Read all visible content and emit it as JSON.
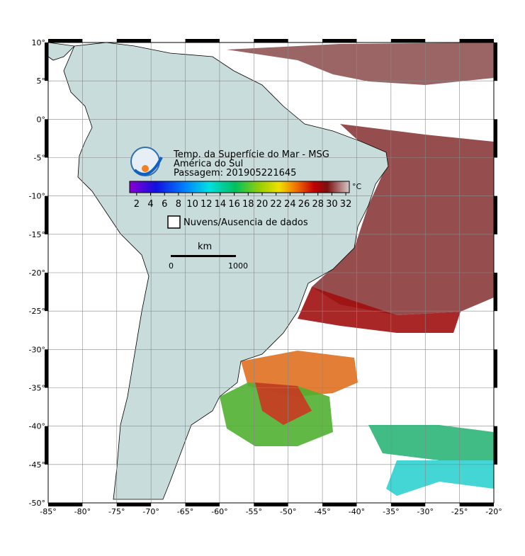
{
  "map": {
    "title_lines": [
      "Temp. da Superfície do Mar - MSG",
      "América do Sul",
      "Passagem: 201905221645"
    ],
    "lon_range": [
      -85,
      -20
    ],
    "lat_range": [
      -50,
      10
    ],
    "lon_ticks": [
      {
        "value": -85,
        "label": "-85°"
      },
      {
        "value": -80,
        "label": "-80°"
      },
      {
        "value": -75,
        "label": "-75°"
      },
      {
        "value": -70,
        "label": "-70°"
      },
      {
        "value": -65,
        "label": "-65°"
      },
      {
        "value": -60,
        "label": "-60°"
      },
      {
        "value": -55,
        "label": "-55°"
      },
      {
        "value": -50,
        "label": "-50°"
      },
      {
        "value": -45,
        "label": "-45°"
      },
      {
        "value": -40,
        "label": "-40°"
      },
      {
        "value": -35,
        "label": "-35°"
      },
      {
        "value": -30,
        "label": "-30°"
      },
      {
        "value": -25,
        "label": "-25°"
      },
      {
        "value": -20,
        "label": "-20°"
      }
    ],
    "lat_ticks": [
      {
        "value": 10,
        "label": "10°"
      },
      {
        "value": 5,
        "label": "5°"
      },
      {
        "value": 0,
        "label": "0°"
      },
      {
        "value": -5,
        "label": "-5°"
      },
      {
        "value": -10,
        "label": "-10°"
      },
      {
        "value": -15,
        "label": "-15°"
      },
      {
        "value": -20,
        "label": "-20°"
      },
      {
        "value": -25,
        "label": "-25°"
      },
      {
        "value": -30,
        "label": "-30°"
      },
      {
        "value": -35,
        "label": "-35°"
      },
      {
        "value": -40,
        "label": "-40°"
      },
      {
        "value": -45,
        "label": "-45°"
      },
      {
        "value": -50,
        "label": "-50°"
      }
    ],
    "colorbar": {
      "range": [
        1,
        32.5
      ],
      "ticks": [
        2,
        4,
        6,
        8,
        10,
        12,
        14,
        16,
        18,
        20,
        22,
        24,
        26,
        28,
        30,
        32
      ],
      "unit": "°C"
    },
    "cloud_legend": "Nuvens/Ausencia de dados",
    "scale_bar": {
      "unit": "km",
      "start": "0",
      "end": "1000"
    }
  }
}
